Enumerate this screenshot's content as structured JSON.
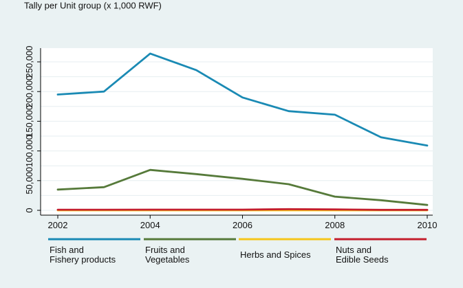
{
  "header": {
    "cutoff_title": "Tally per Unit group (x 1,000 RWF)"
  },
  "chart_data": {
    "type": "line",
    "title": "",
    "xlabel": "",
    "ylabel": "",
    "x": [
      2002,
      2003,
      2004,
      2005,
      2006,
      2007,
      2008,
      2009,
      2010
    ],
    "xticks": [
      2002,
      2004,
      2006,
      2008,
      2010
    ],
    "xtick_labels": [
      "2002",
      "2004",
      "2006",
      "2008",
      "2010"
    ],
    "yticks": [
      0,
      50000,
      100000,
      150000,
      200000,
      250000
    ],
    "ytick_labels": [
      "0",
      "50,000",
      "100,000",
      "150,000",
      "200,000",
      "250,000"
    ],
    "xlim": [
      2002,
      2010
    ],
    "ylim": [
      0,
      270000
    ],
    "grid": true,
    "legend_position": "bottom",
    "series": [
      {
        "name": "Fish and\nFishery products",
        "name_lines": [
          "Fish and",
          "Fishery products"
        ],
        "color": "#1a8ab4",
        "values": [
          195000,
          200000,
          264000,
          236000,
          190000,
          167000,
          161000,
          123000,
          109000
        ]
      },
      {
        "name": "Fruits and\nVegetables",
        "name_lines": [
          "Fruits and",
          "Vegetables"
        ],
        "color": "#567a3a",
        "values": [
          35000,
          39000,
          68000,
          61000,
          53000,
          44000,
          23000,
          17000,
          9000
        ]
      },
      {
        "name": "Herbs and Spices",
        "name_lines": [
          "Herbs and Spices"
        ],
        "color": "#f5c51a",
        "values": [
          0,
          0,
          0,
          0,
          0,
          0,
          0,
          0,
          0
        ]
      },
      {
        "name": "Nuts and\nEdible Seeds",
        "name_lines": [
          "Nuts and",
          "Edible Seeds"
        ],
        "color": "#c41e2c",
        "values": [
          1000,
          1000,
          1200,
          1200,
          1200,
          2000,
          1500,
          800,
          800
        ]
      }
    ]
  }
}
